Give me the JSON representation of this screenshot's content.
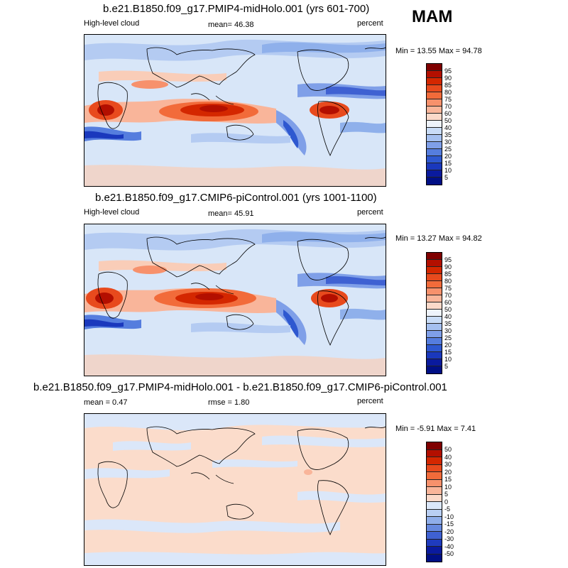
{
  "season": "MAM",
  "panels": [
    {
      "title": "b.e21.B1850.f09_g17.PMIP4-midHolo.001 (yrs 601-700)",
      "left_label": "High-level cloud",
      "center_label": "mean=  46.38",
      "units": "percent",
      "minmax": "Min =  13.55 Max =  94.78"
    },
    {
      "title": "b.e21.B1850.f09_g17.CMIP6-piControl.001 (yrs 1001-1100)",
      "left_label": "High-level cloud",
      "center_label": "mean=  45.91",
      "units": "percent",
      "minmax": "Min =  13.27 Max =  94.82"
    },
    {
      "title": "b.e21.B1850.f09_g17.PMIP4-midHolo.001 - b.e21.B1850.f09_g17.CMIP6-piControl.001",
      "left_label": "mean =  0.47",
      "center_label": "rmse =  1.80",
      "units": "percent",
      "minmax": "Min =  -5.91 Max =   7.41"
    }
  ],
  "colorbars": {
    "absolute": {
      "labels": [
        "95",
        "90",
        "85",
        "80",
        "75",
        "70",
        "60",
        "50",
        "40",
        "35",
        "30",
        "25",
        "20",
        "15",
        "10",
        "5"
      ],
      "colors": [
        "#7f0000",
        "#b30f00",
        "#d42700",
        "#e84a1d",
        "#f26b3a",
        "#f7916c",
        "#f9b59a",
        "#fbd9c9",
        "#eef3fb",
        "#c9dcf7",
        "#a5c0f0",
        "#7f9fe8",
        "#557dde",
        "#2e58d0",
        "#1a38bd",
        "#0a1a9e",
        "#000f85"
      ]
    },
    "difference": {
      "labels": [
        "50",
        "40",
        "30",
        "20",
        "15",
        "10",
        "5",
        "0",
        "-5",
        "-10",
        "-15",
        "-20",
        "-30",
        "-40",
        "-50"
      ],
      "colors": [
        "#7f0000",
        "#b30f00",
        "#d42700",
        "#e84a1d",
        "#f26b3a",
        "#f7916c",
        "#f9b59a",
        "#fbd9c9",
        "#dbe7f9",
        "#b9cff3",
        "#8faeea",
        "#6689df",
        "#3f61d2",
        "#1f3bbe",
        "#0a1a9e",
        "#000f85"
      ]
    }
  },
  "chart_data": [
    {
      "type": "heatmap",
      "title": "b.e21.B1850.f09_g17.PMIP4-midHolo.001 (yrs 601-700)",
      "variable": "High-level cloud",
      "units": "percent",
      "mean": 46.38,
      "min": 13.55,
      "max": 94.78,
      "contour_levels": [
        5,
        10,
        15,
        20,
        25,
        30,
        35,
        40,
        50,
        60,
        70,
        75,
        80,
        85,
        90,
        95
      ]
    },
    {
      "type": "heatmap",
      "title": "b.e21.B1850.f09_g17.CMIP6-piControl.001 (yrs 1001-1100)",
      "variable": "High-level cloud",
      "units": "percent",
      "mean": 45.91,
      "min": 13.27,
      "max": 94.82,
      "contour_levels": [
        5,
        10,
        15,
        20,
        25,
        30,
        35,
        40,
        50,
        60,
        70,
        75,
        80,
        85,
        90,
        95
      ]
    },
    {
      "type": "heatmap",
      "title": "b.e21.B1850.f09_g17.PMIP4-midHolo.001 - b.e21.B1850.f09_g17.CMIP6-piControl.001",
      "variable": "High-level cloud difference",
      "units": "percent",
      "mean": 0.47,
      "rmse": 1.8,
      "min": -5.91,
      "max": 7.41,
      "contour_levels": [
        -50,
        -40,
        -30,
        -20,
        -15,
        -10,
        -5,
        0,
        5,
        10,
        15,
        20,
        30,
        40,
        50
      ]
    }
  ]
}
